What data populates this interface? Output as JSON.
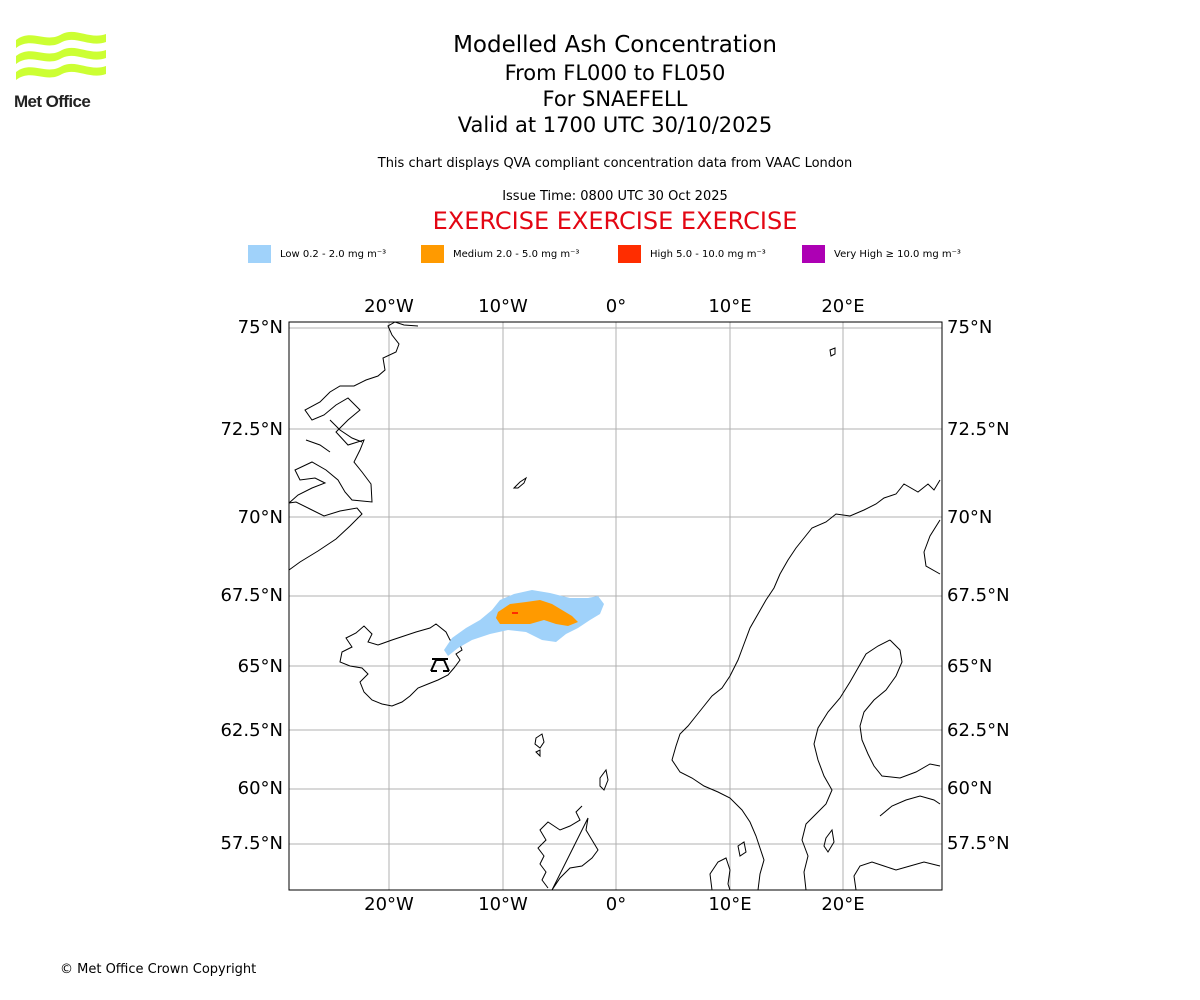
{
  "brand": {
    "name": "Met Office",
    "logo_color": "#ccff33"
  },
  "title": "Modelled Ash Concentration",
  "subtitle_levels": "From FL000 to FL050",
  "subtitle_volcano": "For SNAEFELL",
  "subtitle_valid": "Valid at 1700 UTC 30/10/2025",
  "note": "This chart displays QVA compliant concentration data from VAAC London",
  "issue_time": "Issue Time: 0800 UTC 30 Oct 2025",
  "exercise_banner": "EXERCISE EXERCISE EXERCISE",
  "legend": [
    {
      "label": "Low 0.2 - 2.0 mg m⁻³",
      "color": "#a0d2fa"
    },
    {
      "label": "Medium 2.0 - 5.0 mg m⁻³",
      "color": "#ff9a00"
    },
    {
      "label": "High 5.0 - 10.0 mg m⁻³",
      "color": "#ff2d00"
    },
    {
      "label": "Very High ≥ 10.0 mg m⁻³",
      "color": "#ad00b4"
    }
  ],
  "map": {
    "lon_ticks": [
      "20°W",
      "10°W",
      "0°",
      "10°E",
      "20°E"
    ],
    "lat_ticks": [
      "75°N",
      "72.5°N",
      "70°N",
      "67.5°N",
      "65°N",
      "62.5°N",
      "60°N",
      "57.5°N"
    ],
    "grid": true,
    "volcano_marker": "volcano-icon"
  },
  "footer": "© Met Office Crown Copyright"
}
